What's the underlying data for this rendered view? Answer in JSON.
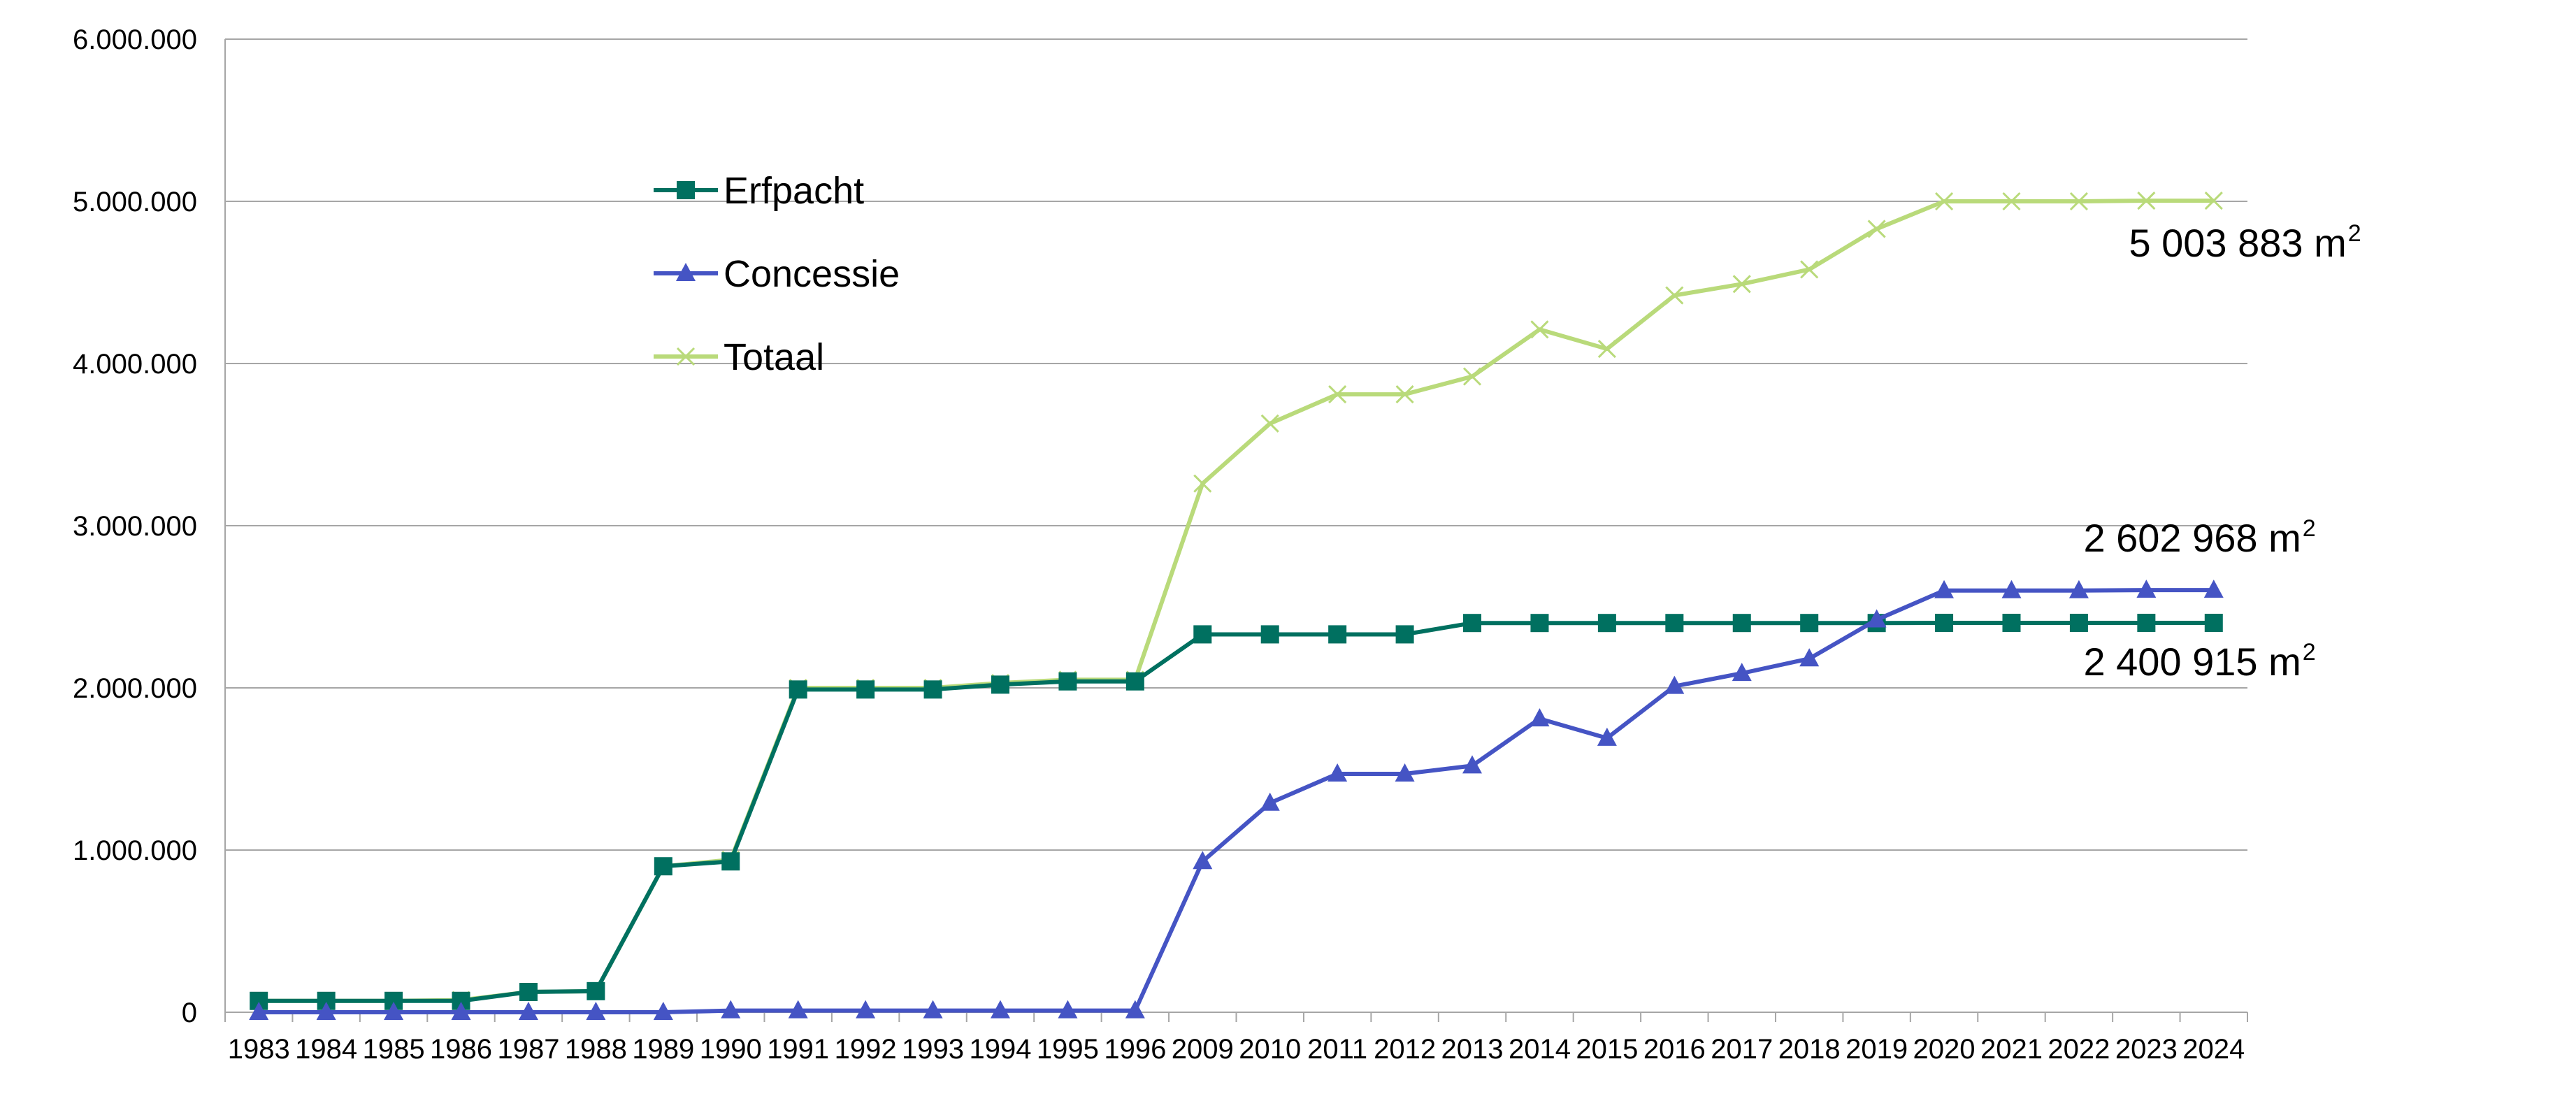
{
  "chart_data": {
    "type": "line",
    "title": "",
    "xlabel": "",
    "ylabel": "",
    "categories": [
      "1983",
      "1984",
      "1985",
      "1986",
      "1987",
      "1988",
      "1989",
      "1990",
      "1991",
      "1992",
      "1993",
      "1994",
      "1995",
      "1996",
      "2009",
      "2010",
      "2011",
      "2012",
      "2013",
      "2014",
      "2015",
      "2016",
      "2017",
      "2018",
      "2019",
      "2020",
      "2021",
      "2022",
      "2023",
      "2024"
    ],
    "ylim": [
      0,
      6000000
    ],
    "y_ticks": [
      "0",
      "1.000.000",
      "2.000.000",
      "3.000.000",
      "4.000.000",
      "5.000.000",
      "6.000.000"
    ],
    "grid": true,
    "legend_position": "top-left",
    "series": [
      {
        "name": "Erfpacht",
        "color": "#007060",
        "marker": "square",
        "values": [
          70000,
          70000,
          70000,
          70000,
          125000,
          130000,
          900000,
          930000,
          1990000,
          1990000,
          1990000,
          2020000,
          2040000,
          2040000,
          2330000,
          2330000,
          2330000,
          2330000,
          2400000,
          2400000,
          2400000,
          2400000,
          2400000,
          2400000,
          2400000,
          2400915,
          2400915,
          2400915,
          2400915,
          2400915
        ]
      },
      {
        "name": "Concessie",
        "color": "#4554C4",
        "marker": "triangle",
        "values": [
          0,
          0,
          0,
          0,
          0,
          0,
          0,
          10000,
          10000,
          10000,
          10000,
          10000,
          10000,
          10000,
          930000,
          1290000,
          1470000,
          1470000,
          1520000,
          1810000,
          1690000,
          2010000,
          2090000,
          2180000,
          2420000,
          2600000,
          2600000,
          2600000,
          2602968,
          2602968
        ]
      },
      {
        "name": "Totaal",
        "color": "#B9DA7A",
        "marker": "x",
        "values": [
          70000,
          70000,
          70000,
          75000,
          125000,
          130000,
          900000,
          940000,
          2000000,
          2000000,
          2000000,
          2030000,
          2050000,
          2050000,
          3260000,
          3630000,
          3810000,
          3810000,
          3920000,
          4210000,
          4090000,
          4420000,
          4490000,
          4580000,
          4830000,
          5000000,
          5000000,
          5000000,
          5003883,
          5003883
        ]
      }
    ],
    "annotations": [
      {
        "text": "5 003 883 m",
        "sup": "2",
        "series": "Totaal"
      },
      {
        "text": "2 602 968 m",
        "sup": "2",
        "series": "Concessie"
      },
      {
        "text": "2 400 915 m",
        "sup": "2",
        "series": "Erfpacht"
      }
    ]
  }
}
